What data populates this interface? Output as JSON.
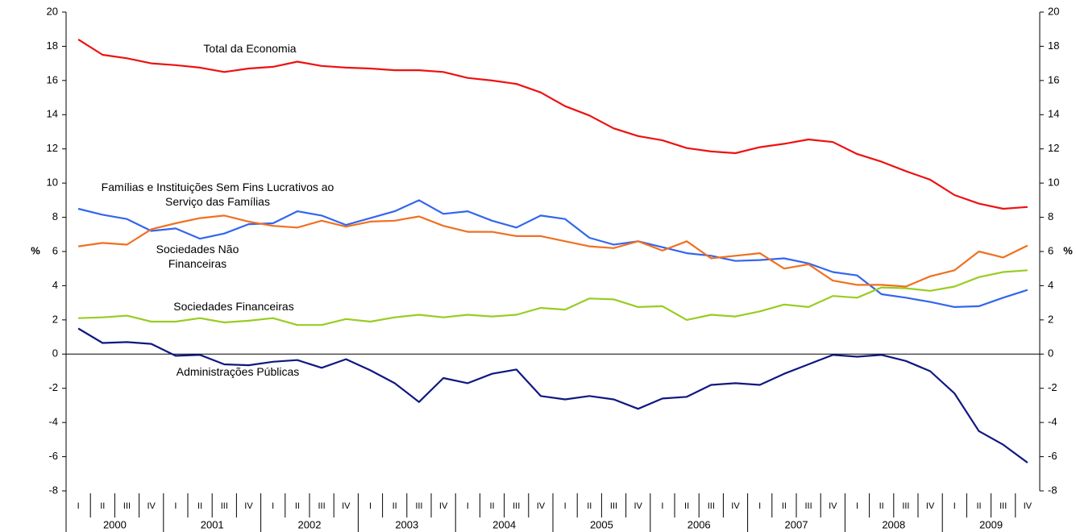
{
  "chart_data": {
    "type": "line",
    "y_label": "%",
    "categories": [
      "I",
      "II",
      "III",
      "IV",
      "I",
      "II",
      "III",
      "IV",
      "I",
      "II",
      "III",
      "IV",
      "I",
      "II",
      "III",
      "IV",
      "I",
      "II",
      "III",
      "IV",
      "I",
      "II",
      "III",
      "IV",
      "I",
      "II",
      "III",
      "IV",
      "I",
      "II",
      "III",
      "IV",
      "I",
      "II",
      "III",
      "IV",
      "I",
      "II",
      "III",
      "IV"
    ],
    "category_groups": [
      "2000",
      "2001",
      "2002",
      "2003",
      "2004",
      "2005",
      "2006",
      "2007",
      "2008",
      "2009"
    ],
    "ylim": [
      -8,
      20
    ],
    "yticks": [
      -8,
      -6,
      -4,
      -2,
      0,
      2,
      4,
      6,
      8,
      10,
      12,
      14,
      16,
      18,
      20
    ],
    "grid": false,
    "series": [
      {
        "name": "Total da Economia",
        "color": "#ee1111",
        "values": [
          18.4,
          17.5,
          17.3,
          17.0,
          16.9,
          16.75,
          16.5,
          16.7,
          16.8,
          17.1,
          16.85,
          16.75,
          16.7,
          16.6,
          16.6,
          16.5,
          16.15,
          16.0,
          15.8,
          15.3,
          14.5,
          13.95,
          13.2,
          12.75,
          12.5,
          12.05,
          11.85,
          11.75,
          12.1,
          12.3,
          12.55,
          12.4,
          11.7,
          11.25,
          10.7,
          10.2,
          9.3,
          8.8,
          8.5,
          8.6
        ]
      },
      {
        "name": "Famílias e Instituições Sem Fins Lucrativos ao Serviço das Famílias",
        "color": "#3366ee",
        "values": [
          8.5,
          8.15,
          7.9,
          7.2,
          7.35,
          6.75,
          7.05,
          7.6,
          7.65,
          8.35,
          8.1,
          7.55,
          7.95,
          8.35,
          9.0,
          8.2,
          8.35,
          7.8,
          7.4,
          8.1,
          7.9,
          6.8,
          6.4,
          6.6,
          6.25,
          5.9,
          5.75,
          5.45,
          5.5,
          5.6,
          5.3,
          4.8,
          4.6,
          3.5,
          3.3,
          3.05,
          2.75,
          2.8,
          3.3,
          3.75
        ]
      },
      {
        "name": "Sociedades Não Financeiras",
        "color": "#f07020",
        "values": [
          6.3,
          6.5,
          6.4,
          7.3,
          7.65,
          7.95,
          8.1,
          7.75,
          7.5,
          7.4,
          7.8,
          7.45,
          7.75,
          7.8,
          8.05,
          7.5,
          7.15,
          7.15,
          6.9,
          6.9,
          6.6,
          6.3,
          6.2,
          6.6,
          6.05,
          6.6,
          5.6,
          5.75,
          5.9,
          5.0,
          5.25,
          4.3,
          4.05,
          4.05,
          3.95,
          4.55,
          4.9,
          6.0,
          5.65,
          6.35
        ]
      },
      {
        "name": "Sociedades Financeiras",
        "color": "#99cc22",
        "values": [
          2.1,
          2.15,
          2.25,
          1.9,
          1.9,
          2.1,
          1.85,
          1.95,
          2.1,
          1.7,
          1.7,
          2.05,
          1.9,
          2.15,
          2.3,
          2.15,
          2.3,
          2.2,
          2.3,
          2.7,
          2.6,
          3.25,
          3.2,
          2.75,
          2.8,
          2.0,
          2.3,
          2.2,
          2.5,
          2.9,
          2.75,
          3.4,
          3.3,
          3.9,
          3.85,
          3.7,
          3.95,
          4.5,
          4.8,
          4.9
        ]
      },
      {
        "name": "Administrações Públicas",
        "color": "#101880",
        "values": [
          1.5,
          0.65,
          0.7,
          0.6,
          -0.1,
          -0.05,
          -0.6,
          -0.65,
          -0.45,
          -0.35,
          -0.8,
          -0.3,
          -0.95,
          -1.7,
          -2.8,
          -1.4,
          -1.7,
          -1.15,
          -0.9,
          -2.45,
          -2.65,
          -2.45,
          -2.65,
          -3.2,
          -2.6,
          -2.5,
          -1.8,
          -1.7,
          -1.8,
          -1.15,
          -0.6,
          -0.05,
          -0.15,
          -0.05,
          -0.4,
          -1.0,
          -2.3,
          -4.5,
          -5.3,
          -6.35
        ]
      }
    ]
  }
}
